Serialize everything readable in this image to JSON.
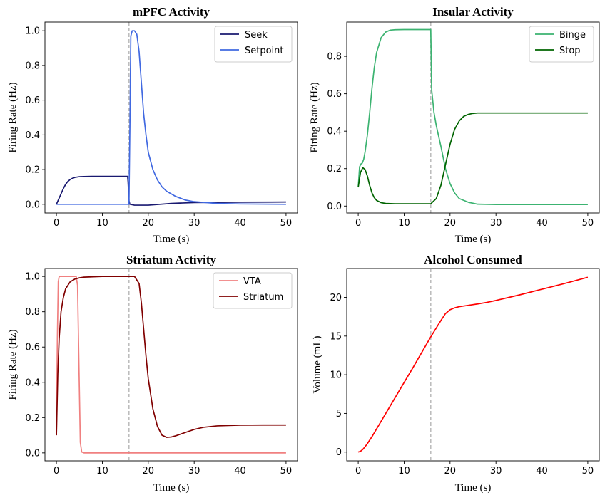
{
  "chart_data": [
    {
      "type": "line",
      "title": "mPFC Activity",
      "xlabel": "Time (s)",
      "ylabel": "Firing Rate (Hz)",
      "xlim": [
        -2.5,
        52.5
      ],
      "ylim": [
        -0.05,
        1.05
      ],
      "xticks": [
        0,
        10,
        20,
        30,
        40,
        50
      ],
      "yticks": [
        0.0,
        0.2,
        0.4,
        0.6,
        0.8,
        1.0
      ],
      "ytick_labels": [
        "0.0",
        "0.2",
        "0.4",
        "0.6",
        "0.8",
        "1.0"
      ],
      "xtick_labels": [
        "0",
        "10",
        "20",
        "30",
        "40",
        "50"
      ],
      "vline_x": 15.8,
      "vline_color": "#bbbbbb",
      "legend_position": "upper right",
      "series": [
        {
          "name": "Seek",
          "color": "#191970",
          "x": [
            0,
            0.5,
            1,
            1.5,
            2,
            2.5,
            3,
            3.5,
            4,
            5,
            6,
            8,
            10,
            12,
            14,
            15.5,
            15.6,
            15.8,
            16,
            17,
            20,
            25,
            30,
            40,
            50
          ],
          "y": [
            0.0,
            0.03,
            0.06,
            0.09,
            0.115,
            0.132,
            0.143,
            0.15,
            0.155,
            0.159,
            0.16,
            0.161,
            0.161,
            0.161,
            0.161,
            0.161,
            0.13,
            0.02,
            0.0,
            -0.005,
            -0.005,
            0.005,
            0.01,
            0.012,
            0.013
          ]
        },
        {
          "name": "Setpoint",
          "color": "#4169e1",
          "x": [
            0,
            5,
            10,
            15,
            15.6,
            15.8,
            16.0,
            16.2,
            16.5,
            17,
            17.5,
            18,
            18.5,
            19,
            19.5,
            20,
            21,
            22,
            23,
            24,
            26,
            28,
            30,
            35,
            40,
            50
          ],
          "y": [
            0.0,
            0.0,
            0.0,
            0.0,
            0.0,
            0.0,
            0.45,
            0.97,
            1.0,
            1.0,
            0.98,
            0.88,
            0.7,
            0.52,
            0.4,
            0.3,
            0.2,
            0.14,
            0.1,
            0.075,
            0.045,
            0.025,
            0.015,
            0.005,
            0.002,
            0.0
          ]
        }
      ]
    },
    {
      "type": "line",
      "title": "Insular Activity",
      "xlabel": "Time (s)",
      "ylabel": "Firing Rate (Hz)",
      "xlim": [
        -2.5,
        52.5
      ],
      "ylim": [
        -0.037,
        0.983
      ],
      "xticks": [
        0,
        10,
        20,
        30,
        40,
        50
      ],
      "yticks": [
        0.0,
        0.2,
        0.4,
        0.6,
        0.8
      ],
      "ytick_labels": [
        "0.0",
        "0.2",
        "0.4",
        "0.6",
        "0.8"
      ],
      "xtick_labels": [
        "0",
        "10",
        "20",
        "30",
        "40",
        "50"
      ],
      "vline_x": 15.8,
      "vline_color": "#bbbbbb",
      "legend_position": "upper right",
      "series": [
        {
          "name": "Binge",
          "color": "#3cb371",
          "x": [
            0,
            0.3,
            0.6,
            0.9,
            1.2,
            1.5,
            2,
            2.5,
            3,
            3.5,
            4,
            5,
            6,
            7,
            8,
            10,
            12,
            14,
            15.8,
            16,
            16.5,
            17,
            18,
            19,
            20,
            21,
            22,
            24,
            26,
            30,
            40,
            50
          ],
          "y": [
            0.1,
            0.21,
            0.225,
            0.23,
            0.25,
            0.29,
            0.38,
            0.5,
            0.63,
            0.74,
            0.82,
            0.9,
            0.93,
            0.94,
            0.942,
            0.943,
            0.943,
            0.943,
            0.943,
            0.62,
            0.5,
            0.43,
            0.32,
            0.2,
            0.12,
            0.07,
            0.04,
            0.02,
            0.01,
            0.008,
            0.008,
            0.008
          ]
        },
        {
          "name": "Stop",
          "color": "#006400",
          "x": [
            0,
            0.5,
            1,
            1.5,
            2,
            2.5,
            3,
            3.5,
            4,
            5,
            6,
            8,
            10,
            12,
            14,
            15.8,
            17,
            18,
            19,
            20,
            21,
            22,
            23,
            24,
            25,
            26,
            30,
            40,
            50
          ],
          "y": [
            0.1,
            0.18,
            0.205,
            0.195,
            0.16,
            0.11,
            0.07,
            0.045,
            0.03,
            0.018,
            0.014,
            0.012,
            0.012,
            0.012,
            0.012,
            0.012,
            0.04,
            0.11,
            0.22,
            0.33,
            0.41,
            0.455,
            0.48,
            0.49,
            0.495,
            0.497,
            0.497,
            0.497,
            0.497
          ]
        }
      ]
    },
    {
      "type": "line",
      "title": "Striatum Activity",
      "xlabel": "Time (s)",
      "ylabel": "Firing Rate (Hz)",
      "xlim": [
        -2.5,
        52.5
      ],
      "ylim": [
        -0.045,
        1.045
      ],
      "xticks": [
        0,
        10,
        20,
        30,
        40,
        50
      ],
      "yticks": [
        0.0,
        0.2,
        0.4,
        0.6,
        0.8,
        1.0
      ],
      "ytick_labels": [
        "0.0",
        "0.2",
        "0.4",
        "0.6",
        "0.8",
        "1.0"
      ],
      "xtick_labels": [
        "0",
        "10",
        "20",
        "30",
        "40",
        "50"
      ],
      "vline_x": 15.8,
      "vline_color": "#bbbbbb",
      "legend_position": "upper right",
      "series": [
        {
          "name": "VTA",
          "color": "#f08080",
          "x": [
            0,
            0.2,
            0.4,
            0.6,
            4.3,
            4.6,
            4.9,
            5.2,
            5.5,
            6,
            10,
            20,
            30,
            40,
            50
          ],
          "y": [
            0.1,
            0.65,
            0.97,
            1.0,
            1.0,
            0.95,
            0.5,
            0.06,
            0.005,
            0.0,
            0.0,
            0.0,
            0.0,
            0.0,
            0.0
          ]
        },
        {
          "name": "Striatum",
          "color": "#800000",
          "x": [
            0,
            0.3,
            0.6,
            1,
            1.5,
            2,
            3,
            4,
            5,
            6,
            8,
            10,
            14,
            17,
            18,
            18.5,
            19,
            19.5,
            20,
            21,
            22,
            23,
            24,
            25,
            26,
            28,
            30,
            32,
            35,
            40,
            45,
            50
          ],
          "y": [
            0.1,
            0.45,
            0.65,
            0.8,
            0.88,
            0.93,
            0.97,
            0.985,
            0.992,
            0.996,
            0.998,
            1.0,
            1.0,
            1.0,
            0.96,
            0.85,
            0.7,
            0.55,
            0.42,
            0.25,
            0.15,
            0.1,
            0.088,
            0.09,
            0.097,
            0.115,
            0.133,
            0.145,
            0.153,
            0.157,
            0.158,
            0.158
          ]
        }
      ]
    },
    {
      "type": "line",
      "title": "Alcohol Consumed",
      "xlabel": "Time (s)",
      "ylabel": "Volume (mL)",
      "xlim": [
        -2.5,
        52.5
      ],
      "ylim": [
        -1.13,
        23.73
      ],
      "xticks": [
        0,
        10,
        20,
        30,
        40,
        50
      ],
      "yticks": [
        0,
        5,
        10,
        15,
        20
      ],
      "ytick_labels": [
        "0",
        "5",
        "10",
        "15",
        "20"
      ],
      "xtick_labels": [
        "0",
        "10",
        "20",
        "30",
        "40",
        "50"
      ],
      "vline_x": 15.8,
      "vline_color": "#bbbbbb",
      "series": [
        {
          "name": "",
          "color": "#ff0000",
          "x": [
            0,
            0.5,
            1,
            1.5,
            2,
            3,
            5,
            8,
            10,
            12,
            15.8,
            18,
            19,
            20,
            21,
            22,
            24,
            26,
            28,
            30,
            35,
            40,
            45,
            50
          ],
          "y": [
            0.0,
            0.1,
            0.35,
            0.7,
            1.1,
            2.0,
            4.0,
            7.0,
            9.0,
            11.0,
            14.9,
            17.0,
            17.9,
            18.4,
            18.65,
            18.8,
            18.97,
            19.15,
            19.35,
            19.6,
            20.3,
            21.05,
            21.8,
            22.6
          ]
        }
      ]
    }
  ]
}
